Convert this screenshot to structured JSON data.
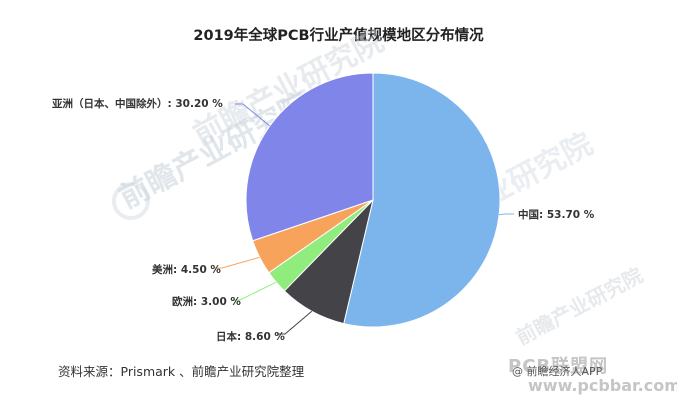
{
  "chart_data": {
    "type": "pie",
    "title": "2019年全球PCB行业产值规模地区分布情况",
    "slices": [
      {
        "label": "中国",
        "value": 53.7,
        "label_text": "中国: 53.70 %",
        "color": "#7cb5ec"
      },
      {
        "label": "日本",
        "value": 8.6,
        "label_text": "日本: 8.60 %",
        "color": "#434348"
      },
      {
        "label": "欧洲",
        "value": 3.0,
        "label_text": "欧洲: 3.00 %",
        "color": "#90ed7d"
      },
      {
        "label": "美洲",
        "value": 4.5,
        "label_text": "美洲: 4.50 %",
        "color": "#f7a35c"
      },
      {
        "label": "亚洲（日本、中国除外）",
        "value": 30.2,
        "label_text": "亚洲（日本、中国除外）: 30.20 %",
        "color": "#8085e9"
      }
    ],
    "start_angle": "12 o'clock",
    "direction": "clockwise"
  },
  "source_note": "资料来源：Prismark 、前瞻产业研究院整理",
  "watermark": {
    "brand": "前瞻产业研究院",
    "site_name": "PCB联盟网",
    "site_url": "www.pcbbar.com",
    "credit": "@ 前瞻经济人APP"
  }
}
